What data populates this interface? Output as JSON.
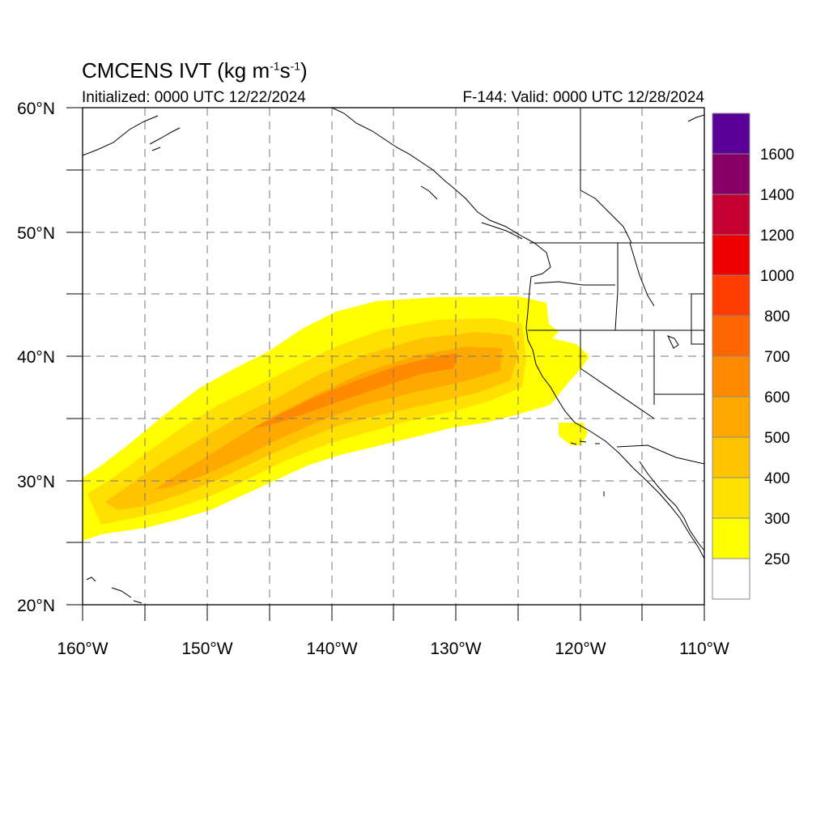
{
  "title": {
    "main": "CMCENS IVT (kg m",
    "unit_exp1": "-1",
    "mid": "s",
    "unit_exp2": "-1",
    "close": ")"
  },
  "subtitle_left": "Initialized: 0000 UTC 12/22/2024",
  "subtitle_right": "F-144: Valid: 0000 UTC 12/28/2024",
  "map": {
    "lon_range": [
      -160,
      -110
    ],
    "lat_range": [
      20,
      60
    ],
    "lon_tick_labels": [
      "160°W",
      "150°W",
      "140°W",
      "130°W",
      "120°W",
      "110°W"
    ],
    "lat_tick_labels": [
      "20°N",
      "30°N",
      "40°N",
      "50°N",
      "60°N"
    ],
    "grid": "dashed every 5°"
  },
  "colorbar": {
    "levels": [
      "250",
      "300",
      "400",
      "500",
      "600",
      "700",
      "800",
      "1000",
      "1200",
      "1400",
      "1600"
    ],
    "colors": [
      "#ffffff",
      "#ffff00",
      "#ffe000",
      "#ffc400",
      "#ffa900",
      "#ff8a00",
      "#ff6600",
      "#ff3c00",
      "#ee0000",
      "#c40033",
      "#880066",
      "#5a0099"
    ]
  }
}
